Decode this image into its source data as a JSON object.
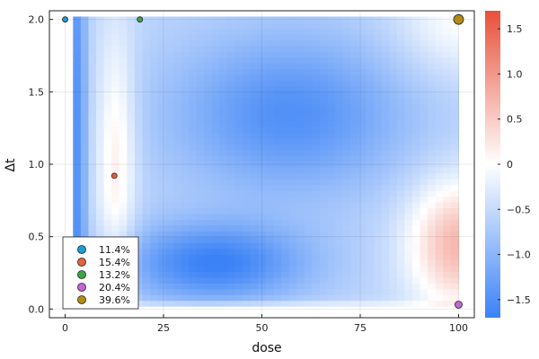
{
  "chart_data": {
    "type": "heatmap",
    "title": "",
    "xlabel": "dose",
    "ylabel": "Δt",
    "xlim": [
      -4,
      104
    ],
    "ylim": [
      -0.06,
      2.06
    ],
    "heatmap_extent": {
      "x": [
        2,
        100
      ],
      "y": [
        0.02,
        2.02
      ]
    },
    "x_ticks": [
      0,
      25,
      50,
      75,
      100
    ],
    "x_tick_labels": [
      "0",
      "25",
      "50",
      "75",
      "100"
    ],
    "y_ticks": [
      0.0,
      0.5,
      1.0,
      1.5,
      2.0
    ],
    "y_tick_labels": [
      "0.0",
      "0.5",
      "1.0",
      "1.5",
      "2.0"
    ],
    "colorbar": {
      "min": -1.7,
      "max": 1.7,
      "ticks": [
        -1.5,
        -1.0,
        -0.5,
        0,
        0.5,
        1.0,
        1.5
      ],
      "tick_labels": [
        "−1.5",
        "−1.0",
        "−0.5",
        "0",
        "0.5",
        "1.0",
        "1.5"
      ],
      "colors": {
        "low": "#3b82f6",
        "mid": "#ffffff",
        "high": "#e8503a"
      }
    },
    "grid": true,
    "legend_position": "bottom-left",
    "series": [
      {
        "name": "11.4%",
        "x": 0,
        "y": 2.0,
        "color": "#1f9bd6",
        "size": 3
      },
      {
        "name": "15.4%",
        "x": 12.5,
        "y": 0.92,
        "color": "#e8613b",
        "size": 3
      },
      {
        "name": "13.2%",
        "x": 19,
        "y": 2.0,
        "color": "#3aa648",
        "size": 3
      },
      {
        "name": "20.4%",
        "x": 100,
        "y": 0.03,
        "color": "#c266d4",
        "size": 4
      },
      {
        "name": "39.6%",
        "x": 100,
        "y": 2.0,
        "color": "#b38b14",
        "size": 5.5
      }
    ]
  }
}
